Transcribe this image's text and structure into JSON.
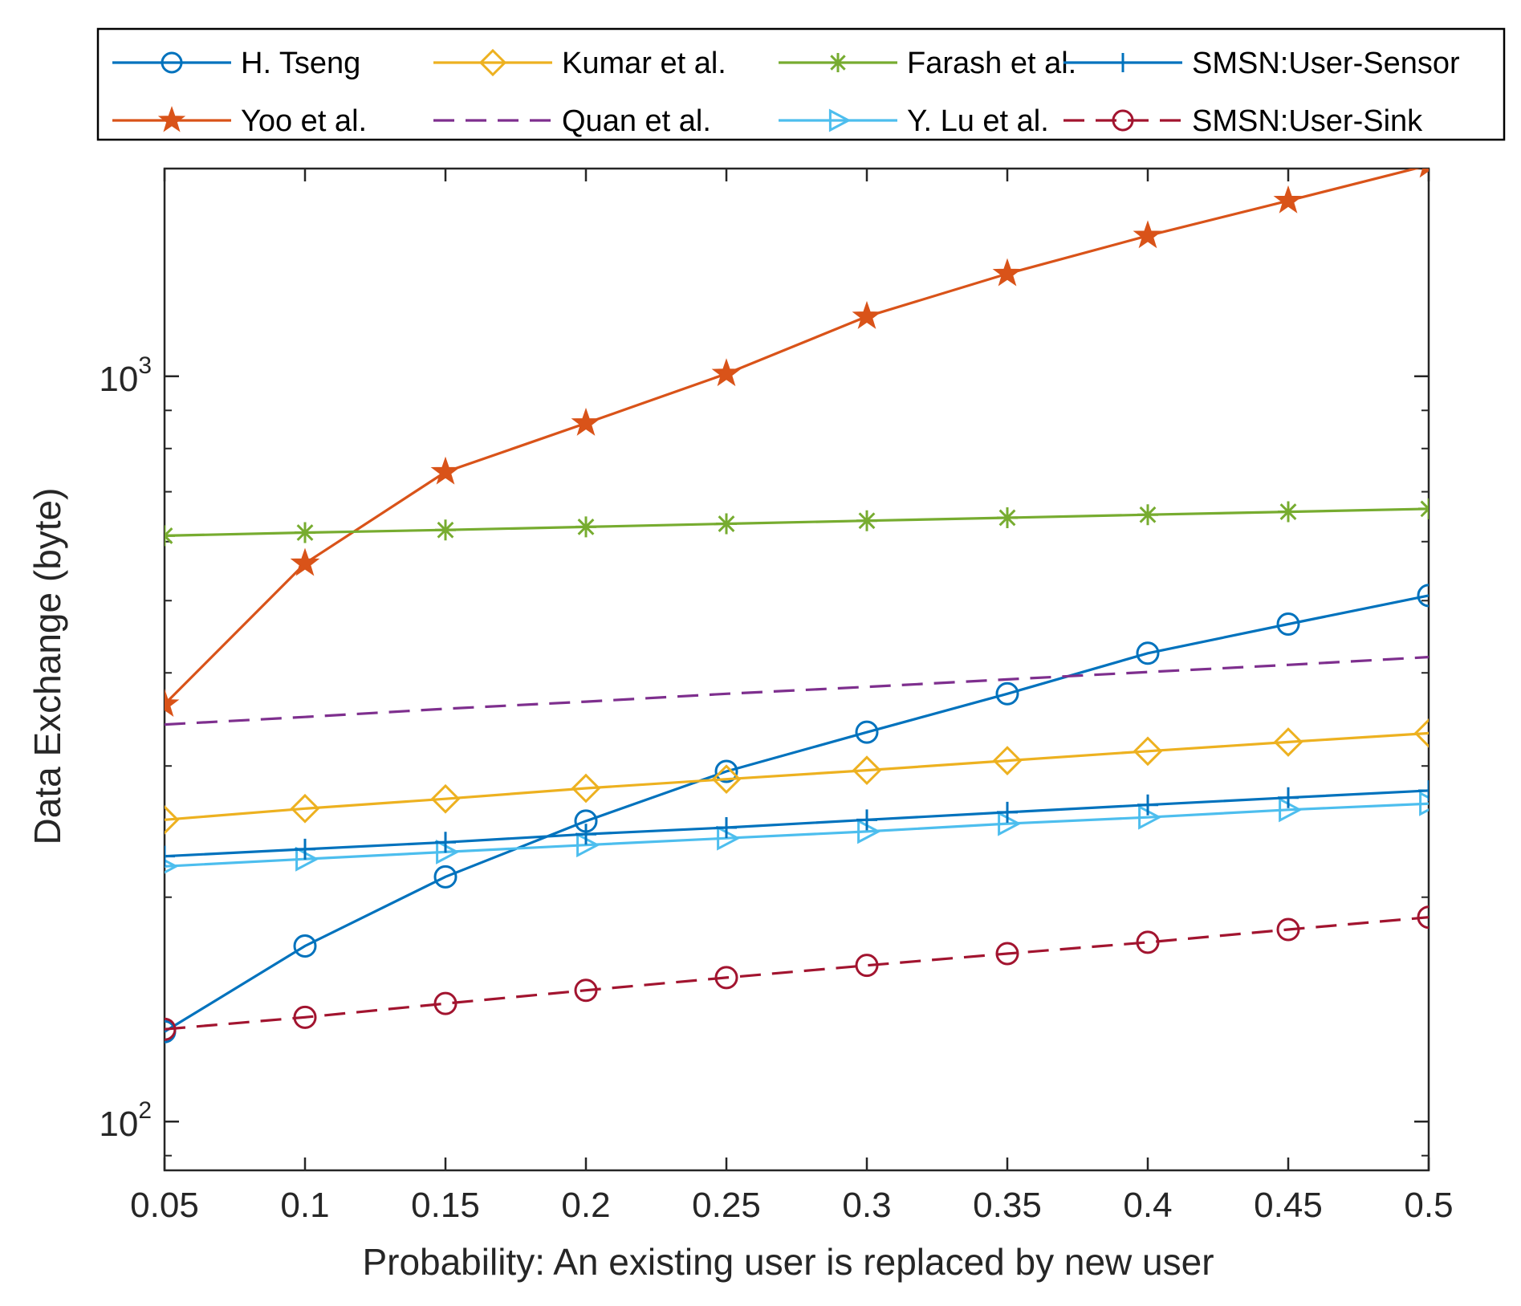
{
  "chart_data": {
    "type": "line",
    "title": "",
    "xlabel": "Probability: An existing user is replaced by new user",
    "ylabel": "Data Exchange (byte)",
    "yscale": "log",
    "xlim": [
      0.05,
      0.5
    ],
    "ylim": [
      86,
      1900
    ],
    "x": [
      0.05,
      0.1,
      0.15,
      0.2,
      0.25,
      0.3,
      0.35,
      0.4,
      0.45,
      0.5
    ],
    "x_tick_labels": [
      "0.05",
      "0.1",
      "0.15",
      "0.2",
      "0.25",
      "0.3",
      "0.35",
      "0.4",
      "0.45",
      "0.5"
    ],
    "y_ticks": [
      {
        "value": 100,
        "base": "10",
        "exp": "2"
      },
      {
        "value": 1000,
        "base": "10",
        "exp": "3"
      }
    ],
    "legend_position": "top",
    "series": [
      {
        "name": "H. Tseng",
        "color": "#0072BD",
        "marker": "circle",
        "dash": "solid",
        "values": [
          132,
          172,
          213,
          253,
          295,
          333,
          375,
          425,
          465,
          508
        ]
      },
      {
        "name": "Yoo et al.",
        "color": "#D95319",
        "marker": "star",
        "dash": "solid",
        "values": [
          363,
          561,
          744,
          865,
          1008,
          1203,
          1373,
          1544,
          1720,
          1920
        ]
      },
      {
        "name": "Kumar et al.",
        "color": "#EDB120",
        "marker": "diamond",
        "dash": "solid",
        "values": [
          254,
          263,
          271,
          280,
          288,
          296,
          305,
          314,
          323,
          332
        ]
      },
      {
        "name": "Quan et al.",
        "color": "#7E2F8E",
        "marker": "none",
        "dash": "dashed",
        "values": [
          341,
          349,
          358,
          366,
          375,
          383,
          392,
          401,
          410,
          420
        ]
      },
      {
        "name": "Farash et al.",
        "color": "#77AC30",
        "marker": "asterisk",
        "dash": "solid",
        "values": [
          611,
          617,
          622,
          628,
          634,
          640,
          646,
          652,
          658,
          664
        ]
      },
      {
        "name": "Y. Lu et al.",
        "color": "#4DBEEE",
        "marker": "triangle-right",
        "dash": "solid",
        "values": [
          220,
          225,
          230,
          235,
          240,
          245,
          251,
          256,
          262,
          267
        ]
      },
      {
        "name": "SMSN:User-Sensor",
        "color": "#0072BD",
        "marker": "plus",
        "dash": "solid",
        "values": [
          227,
          232,
          237,
          243,
          248,
          254,
          260,
          266,
          272,
          278
        ]
      },
      {
        "name": "SMSN:User-Sink",
        "color": "#A2142F",
        "marker": "circle",
        "dash": "dashed",
        "values": [
          133,
          138,
          144,
          150,
          156,
          162,
          168,
          174,
          181,
          188
        ]
      }
    ]
  }
}
